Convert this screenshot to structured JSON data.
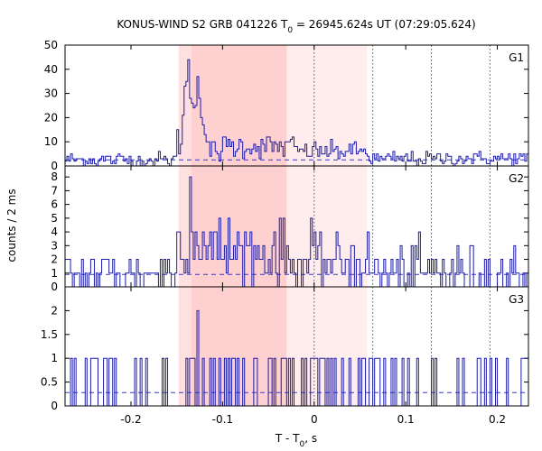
{
  "chart_data": {
    "type": "line",
    "title": {
      "prefix": "KONUS-WIND S2 GRB 041226 T",
      "sub": "0",
      "suffix": " = 26945.624s UT (07:29:05.624)"
    },
    "ylabel": "counts / 2 ms",
    "xlabel": {
      "prefix": "T - T",
      "sub": "0",
      "suffix": ", s"
    },
    "xlim": [
      -0.272,
      0.234
    ],
    "x_ticks": [
      -0.2,
      -0.1,
      0,
      0.1,
      0.2
    ],
    "x_tick_labels": [
      "-0.2",
      "-0.1",
      "0",
      "0.1",
      "0.2"
    ],
    "shaded_regions": [
      {
        "x0": -0.148,
        "x1": -0.03,
        "color": "#ffe0e0"
      },
      {
        "x0": -0.134,
        "x1": -0.03,
        "color": "#ffd0d0"
      },
      {
        "x0": -0.03,
        "x1": 0.058,
        "color": "#ffecec"
      }
    ],
    "dotted_lines": [
      0,
      0.064,
      0.128,
      0.192
    ],
    "bin_width": 0.002,
    "panels": [
      {
        "label": "G1",
        "ylim": [
          0,
          50
        ],
        "y_ticks": [
          0,
          10,
          20,
          30,
          40,
          50
        ],
        "y_tick_labels": [
          "0",
          "10",
          "20",
          "30",
          "40",
          "50"
        ],
        "background": 2.5,
        "segments": [
          {
            "t0": -0.272,
            "t1": -0.15,
            "mean": 2.5,
            "sd": 1.6,
            "max": 6
          },
          {
            "t0": -0.15,
            "t1": -0.145,
            "mean": 10,
            "sd": 3,
            "max": 20
          },
          {
            "t0": -0.145,
            "t1": -0.14,
            "mean": 24,
            "sd": 3,
            "max": 30
          },
          {
            "t0": -0.14,
            "t1": -0.133,
            "mean": 32,
            "sd": 5,
            "max": 44
          },
          {
            "t0": -0.133,
            "t1": -0.125,
            "mean": 28,
            "sd": 4,
            "max": 37
          },
          {
            "t0": -0.125,
            "t1": -0.118,
            "mean": 18,
            "sd": 4,
            "max": 25
          },
          {
            "t0": -0.118,
            "t1": -0.1,
            "mean": 6,
            "sd": 2.5,
            "max": 12
          },
          {
            "t0": -0.1,
            "t1": -0.02,
            "mean": 8,
            "sd": 2.5,
            "max": 15
          },
          {
            "t0": -0.02,
            "t1": 0.06,
            "mean": 6,
            "sd": 2,
            "max": 11
          },
          {
            "t0": 0.06,
            "t1": 0.234,
            "mean": 3,
            "sd": 1.5,
            "max": 7
          }
        ],
        "spikes": [
          {
            "t": -0.137,
            "v": 44
          },
          {
            "t": -0.141,
            "v": 33
          },
          {
            "t": -0.128,
            "v": 37
          }
        ]
      },
      {
        "label": "G2",
        "ylim": [
          0,
          8.8
        ],
        "y_ticks": [
          0,
          1,
          2,
          3,
          4,
          5,
          6,
          7,
          8
        ],
        "y_tick_labels": [
          "0",
          "1",
          "2",
          "3",
          "4",
          "5",
          "6",
          "7",
          "8"
        ],
        "background": 0.9,
        "segments": [
          {
            "t0": -0.272,
            "t1": -0.15,
            "mean": 1,
            "sd": 1,
            "max": 3
          },
          {
            "t0": -0.15,
            "t1": -0.12,
            "mean": 3.5,
            "sd": 1.3,
            "max": 6
          },
          {
            "t0": -0.12,
            "t1": -0.03,
            "mean": 2.5,
            "sd": 1.2,
            "max": 5
          },
          {
            "t0": -0.03,
            "t1": 0.06,
            "mean": 1.8,
            "sd": 1,
            "max": 4
          },
          {
            "t0": 0.06,
            "t1": 0.234,
            "mean": 1,
            "sd": 1,
            "max": 4
          }
        ],
        "spikes": [
          {
            "t": -0.135,
            "v": 8
          },
          {
            "t": -0.103,
            "v": 5
          },
          {
            "t": -0.003,
            "v": 5
          }
        ]
      },
      {
        "label": "G3",
        "ylim": [
          0,
          2.5
        ],
        "y_ticks": [
          0,
          0.5,
          1,
          1.5,
          2
        ],
        "y_tick_labels": [
          "0",
          "0.5",
          "1",
          "1.5",
          "2"
        ],
        "background": 0.28,
        "segments": [
          {
            "t0": -0.272,
            "t1": 0.234,
            "mean": 0.3,
            "sd": 0.45,
            "max": 1
          }
        ],
        "spikes": [
          {
            "t": -0.127,
            "v": 2
          }
        ]
      }
    ]
  },
  "colors": {
    "series": "#1c1ca8",
    "axis": "#000000",
    "background_line": "#3838c8"
  }
}
